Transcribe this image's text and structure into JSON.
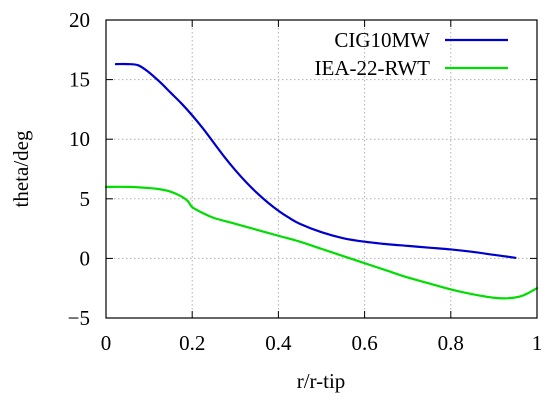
{
  "chart_data": {
    "type": "line",
    "title": "",
    "xlabel": "r/r-tip",
    "ylabel": "theta/deg",
    "xlim": [
      0,
      1
    ],
    "ylim": [
      -5,
      20
    ],
    "x_ticks": [
      {
        "value": 0,
        "label": "0"
      },
      {
        "value": 0.2,
        "label": "0.2"
      },
      {
        "value": 0.4,
        "label": "0.4"
      },
      {
        "value": 0.6,
        "label": "0.6"
      },
      {
        "value": 0.8,
        "label": "0.8"
      },
      {
        "value": 1,
        "label": "1"
      }
    ],
    "y_ticks": [
      {
        "value": -5,
        "label": "−5"
      },
      {
        "value": 0,
        "label": "0"
      },
      {
        "value": 5,
        "label": "5"
      },
      {
        "value": 10,
        "label": "10"
      },
      {
        "value": 15,
        "label": "15"
      },
      {
        "value": 20,
        "label": "20"
      }
    ],
    "grid": true,
    "legend_position": "top-right",
    "series": [
      {
        "name": "CIG10MW",
        "color": "#0000cc",
        "x": [
          0.023,
          0.05,
          0.075,
          0.1,
          0.125,
          0.15,
          0.175,
          0.2,
          0.225,
          0.25,
          0.275,
          0.3,
          0.325,
          0.35,
          0.375,
          0.4,
          0.425,
          0.45,
          0.5,
          0.55,
          0.6,
          0.65,
          0.7,
          0.75,
          0.8,
          0.85,
          0.9,
          0.95
        ],
        "y": [
          16.3,
          16.3,
          16.2,
          15.6,
          14.8,
          13.9,
          13.0,
          12.0,
          10.9,
          9.7,
          8.5,
          7.4,
          6.4,
          5.5,
          4.7,
          4.0,
          3.4,
          2.9,
          2.2,
          1.7,
          1.4,
          1.2,
          1.05,
          0.9,
          0.75,
          0.55,
          0.3,
          0.05
        ]
      },
      {
        "name": "IEA-22-RWT",
        "color": "#00dd00",
        "x": [
          0.0,
          0.05,
          0.1,
          0.125,
          0.15,
          0.175,
          0.19,
          0.2,
          0.225,
          0.25,
          0.3,
          0.35,
          0.4,
          0.45,
          0.5,
          0.55,
          0.6,
          0.65,
          0.7,
          0.75,
          0.8,
          0.85,
          0.9,
          0.93,
          0.96,
          0.98,
          1.0
        ],
        "y": [
          6.0,
          6.0,
          5.9,
          5.8,
          5.6,
          5.2,
          4.8,
          4.3,
          3.8,
          3.4,
          2.9,
          2.4,
          1.9,
          1.4,
          0.8,
          0.2,
          -0.4,
          -1.0,
          -1.6,
          -2.1,
          -2.6,
          -3.0,
          -3.3,
          -3.35,
          -3.2,
          -2.9,
          -2.5
        ]
      }
    ]
  }
}
